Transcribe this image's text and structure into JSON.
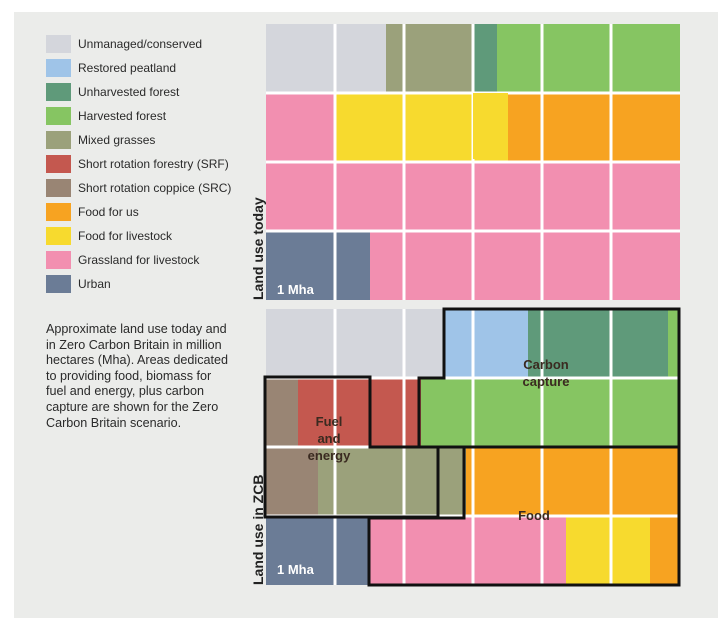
{
  "chart_data": {
    "type": "table",
    "unit_label": "1 Mha",
    "categories": [
      {
        "key": "unmanaged",
        "label": "Unmanaged/conserved",
        "color": "#d4d6dc"
      },
      {
        "key": "peat",
        "label": "Restored peatland",
        "color": "#9fc4e8"
      },
      {
        "key": "unharvested",
        "label": "Unharvested forest",
        "color": "#5f9a7a"
      },
      {
        "key": "harvested",
        "label": "Harvested forest",
        "color": "#86c562"
      },
      {
        "key": "grasses",
        "label": "Mixed grasses",
        "color": "#9ba17b"
      },
      {
        "key": "srf",
        "label": "Short rotation forestry (SRF)",
        "color": "#c4584f"
      },
      {
        "key": "src",
        "label": "Short rotation coppice (SRC)",
        "color": "#998574"
      },
      {
        "key": "food_us",
        "label": "Food for us",
        "color": "#f7a321"
      },
      {
        "key": "food_livestock",
        "label": "Food for livestock",
        "color": "#f7da2e"
      },
      {
        "key": "grassland",
        "label": "Grassland for livestock",
        "color": "#f28fb0"
      },
      {
        "key": "urban",
        "label": "Urban",
        "color": "#6b7c96"
      }
    ],
    "panels": [
      {
        "label": "Land use today",
        "approx_mha": {
          "unmanaged": 1.75,
          "grasses": 1.25,
          "unharvested": 0.35,
          "harvested": 2.65,
          "food_livestock": 2.6,
          "food_us": 2.4,
          "grassland": 12.5,
          "urban": 1.5
        }
      },
      {
        "label": "Land use in ZCB",
        "approx_mha": {
          "unmanaged": 2.6,
          "peat": 1.2,
          "unharvested": 2.05,
          "harvested": 4.0,
          "src": 1.0,
          "srf": 2.0,
          "grasses": 2.5,
          "food_us": 3.4,
          "food_livestock": 1.3,
          "grassland": 2.9,
          "urban": 1.5
        }
      }
    ],
    "regions": [
      {
        "label_lines": [
          "Carbon",
          "capture"
        ]
      },
      {
        "label_lines": [
          "Fuel",
          "and",
          "energy"
        ]
      },
      {
        "label_lines": [
          "Food"
        ]
      }
    ]
  },
  "caption": "Approximate land use today and in Zero Carbon Britain in million hectares (Mha). Areas dedicated to providing food, biomass for fuel and energy, plus carbon capture are shown for the Zero Carbon Britain scenario."
}
